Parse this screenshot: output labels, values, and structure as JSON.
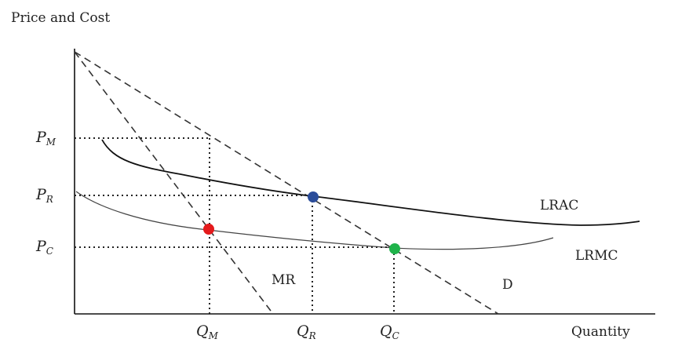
{
  "diagram": {
    "y_axis_title": "Price and Cost",
    "x_axis_title": "Quantity",
    "price_ticks": [
      {
        "main": "P",
        "sub": "M"
      },
      {
        "main": "P",
        "sub": "R"
      },
      {
        "main": "P",
        "sub": "C"
      }
    ],
    "quantity_ticks": [
      {
        "main": "Q",
        "sub": "M"
      },
      {
        "main": "Q",
        "sub": "R"
      },
      {
        "main": "Q",
        "sub": "C"
      }
    ],
    "curve_labels": {
      "lrac": "LRAC",
      "lrmc": "LRMC",
      "mr": "MR",
      "d": "D"
    },
    "point_colors": {
      "monopoly": "#e41a1c",
      "regulated": "#2b4d9a",
      "competitive": "#1fb34a"
    }
  }
}
